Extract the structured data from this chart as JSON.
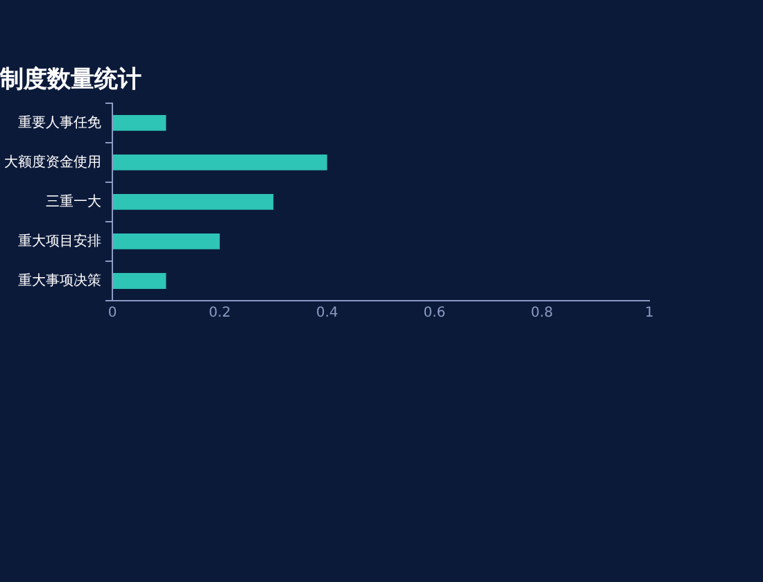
{
  "chart_data": {
    "type": "bar",
    "orientation": "horizontal",
    "title": "制度数量统计",
    "categories": [
      "重要人事任免",
      "大额度资金使用",
      "三重一大",
      "重大项目安排",
      "重大事项决策"
    ],
    "values": [
      0.1,
      0.4,
      0.3,
      0.2,
      0.1
    ],
    "color": "#2ec4b6",
    "xlim": [
      0,
      1
    ],
    "xticks": [
      0,
      0.2,
      0.4,
      0.6,
      0.8,
      1
    ],
    "grid": false,
    "legend": false
  }
}
